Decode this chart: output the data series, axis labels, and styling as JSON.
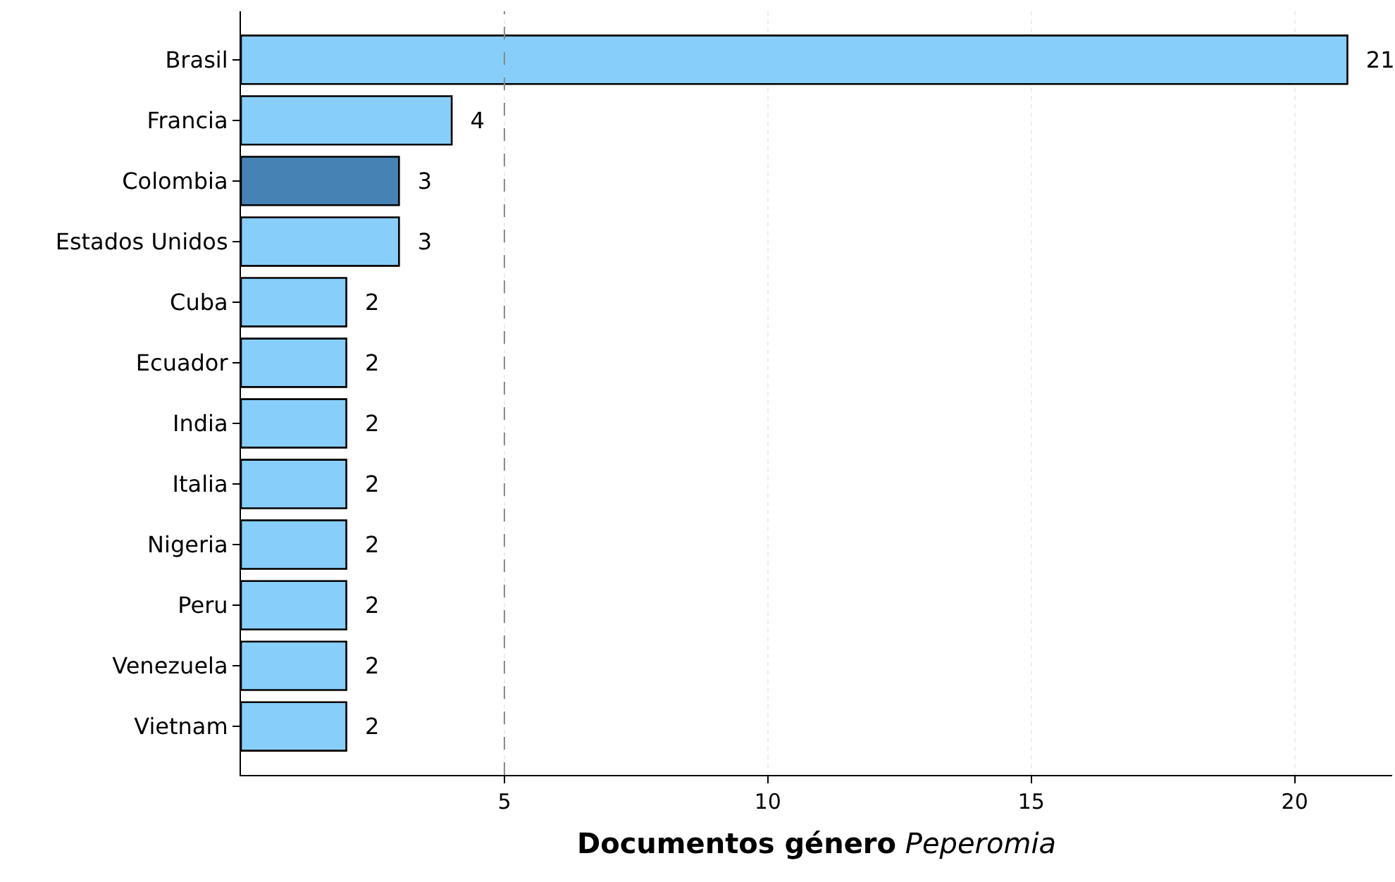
{
  "chart_data": {
    "type": "bar",
    "orientation": "horizontal",
    "xlabel": "Documentos género Peperomia",
    "categories": [
      "Brasil",
      "Francia",
      "Colombia",
      "Estados Unidos",
      "Cuba",
      "Ecuador",
      "India",
      "Italia",
      "Nigeria",
      "Peru",
      "Venezuela",
      "Vietnam"
    ],
    "values": [
      21,
      4,
      3,
      3,
      2,
      2,
      2,
      2,
      2,
      2,
      2,
      2
    ],
    "colors": [
      "#87cefa",
      "#87cefa",
      "#4682b4",
      "#87cefa",
      "#87cefa",
      "#87cefa",
      "#87cefa",
      "#87cefa",
      "#87cefa",
      "#87cefa",
      "#87cefa",
      "#87cefa"
    ],
    "xlim": [
      0,
      21.85
    ],
    "xticks": [
      5,
      10,
      15,
      20
    ],
    "grid": "x",
    "data_labels": true,
    "ref_lines": [
      {
        "axis": "x",
        "value": 5,
        "color": "#888888",
        "line_style": "dashed"
      }
    ]
  }
}
